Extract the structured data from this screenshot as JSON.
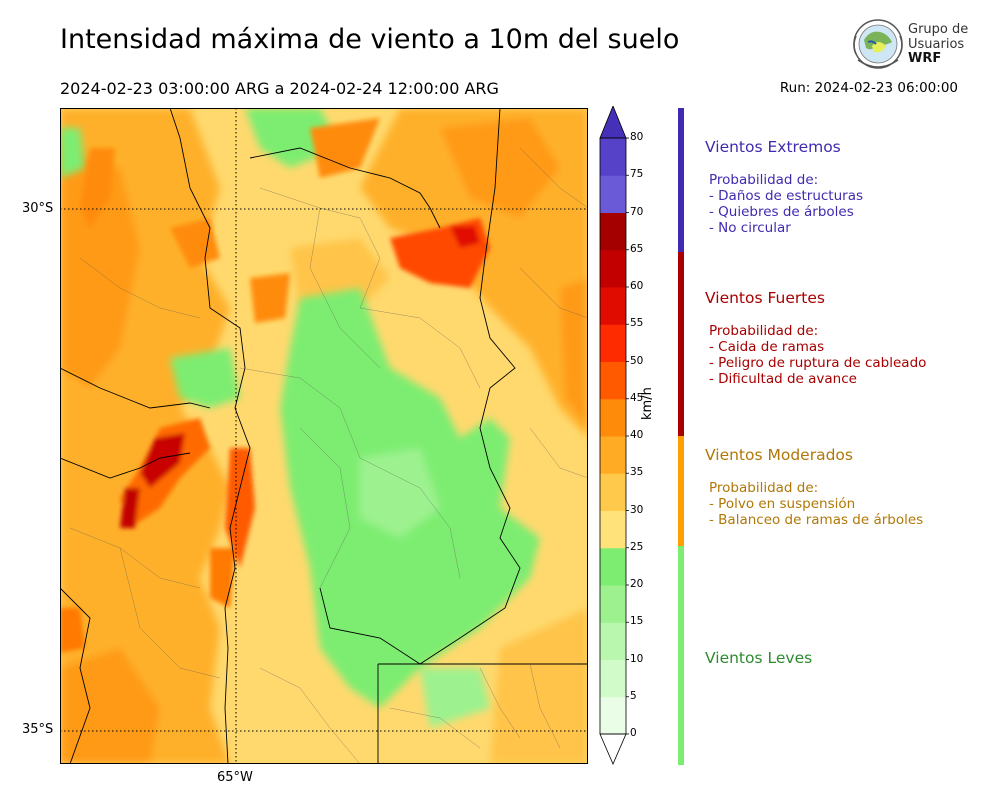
{
  "header": {
    "title": "Intensidad máxima de viento a 10m del suelo",
    "period": "2024-02-23 03:00:00 ARG  a  2024-02-24 12:00:00 ARG",
    "run": "Run: 2024-02-23 06:00:00"
  },
  "logo": {
    "line1": "Grupo de",
    "line2": "Usuarios",
    "line3": "WRF",
    "icon": "globe-satellite-icon"
  },
  "map": {
    "lat_labels": [
      "30°S",
      "35°S"
    ],
    "lon_labels": [
      "65°W"
    ],
    "graticule": "dotted"
  },
  "colorbar": {
    "unit": "km/h",
    "ticks": [
      "0",
      "5",
      "10",
      "15",
      "20",
      "25",
      "30",
      "35",
      "40",
      "45",
      "50",
      "55",
      "60",
      "65",
      "70",
      "75",
      "80"
    ],
    "colors": [
      "#eafde6",
      "#d2fbca",
      "#b8f7ad",
      "#9df28f",
      "#7ded71",
      "#ffe27a",
      "#ffca4b",
      "#ffac24",
      "#ff8b0a",
      "#ff5a00",
      "#ff2b00",
      "#e00c00",
      "#c20000",
      "#a40000",
      "#6a5ad8",
      "#5542c8",
      "#4431b8"
    ]
  },
  "categories": [
    {
      "title": "Vientos Extremos",
      "color": "#3f2bb0",
      "lines": [
        "Probabilidad de:",
        "- Daños de estructuras",
        "- Quiebres de árboles",
        "- No circular"
      ]
    },
    {
      "title": "Vientos Fuertes",
      "color": "#a80000",
      "lines": [
        "Probabilidad de:",
        "- Caida de ramas",
        "- Peligro de ruptura de cableado",
        "- Dificultad de avance"
      ]
    },
    {
      "title": "Vientos Moderados",
      "color": "#b07808",
      "bar": "#ffa000",
      "lines": [
        "Probabilidad de:",
        "- Polvo en suspensión",
        "- Balanceo de ramas de árboles"
      ]
    },
    {
      "title": "Vientos Leves",
      "color": "#2e8b2e",
      "bar": "#7ded71",
      "lines": []
    }
  ]
}
